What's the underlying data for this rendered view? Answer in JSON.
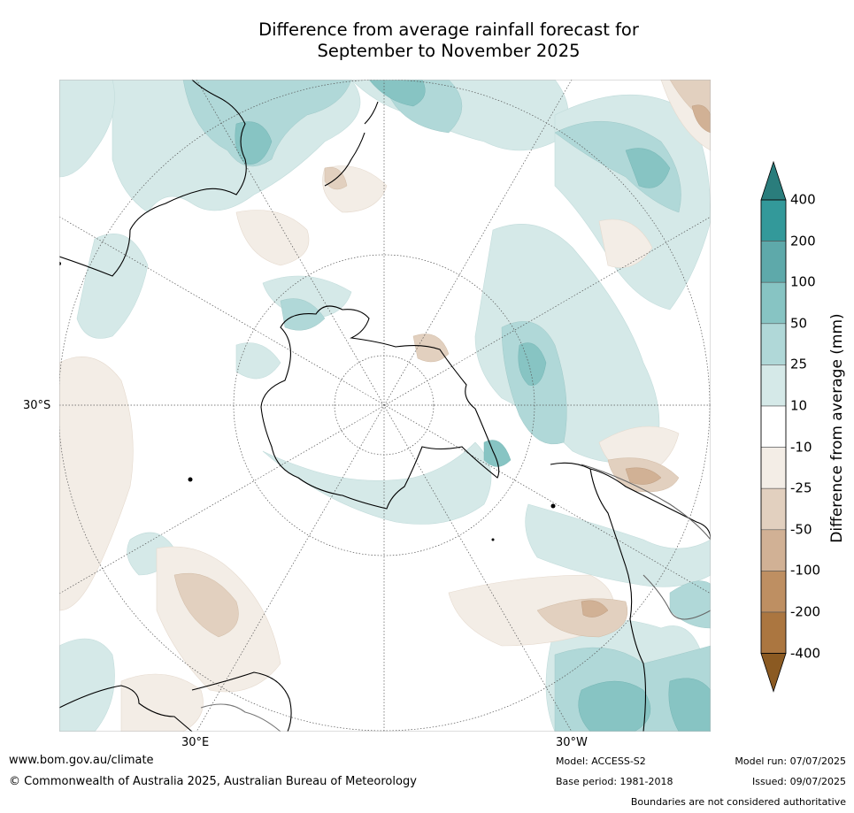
{
  "title_line1": "Difference from average rainfall forecast for",
  "title_line2": "September to November 2025",
  "graticule_labels": {
    "lat_30s": "30°S",
    "lon_30e": "30°E",
    "lon_30w": "30°W"
  },
  "colorbar": {
    "title": "Difference from average (mm)",
    "ticks": [
      "400",
      "200",
      "100",
      "50",
      "25",
      "10",
      "-10",
      "-25",
      "-50",
      "-100",
      "-200",
      "-400"
    ],
    "bands": [
      {
        "range": ">400",
        "color": "#2a7d7c"
      },
      {
        "range": "200 to 400",
        "color": "#33999a"
      },
      {
        "range": "100 to 200",
        "color": "#5ea9aa"
      },
      {
        "range": "50 to 100",
        "color": "#87c4c3"
      },
      {
        "range": "25 to 50",
        "color": "#b0d8d8"
      },
      {
        "range": "10 to 25",
        "color": "#d5e9e8"
      },
      {
        "range": "-10 to 10",
        "color": "#ffffff"
      },
      {
        "range": "-25 to -10",
        "color": "#f3ede6"
      },
      {
        "range": "-50 to -25",
        "color": "#e2d0bf"
      },
      {
        "range": "-100 to -50",
        "color": "#d1b195"
      },
      {
        "range": "-200 to -100",
        "color": "#be8f62"
      },
      {
        "range": "-400 to -200",
        "color": "#ab7640"
      },
      {
        "range": "<-400",
        "color": "#8b5a22"
      }
    ]
  },
  "footer": {
    "website": "www.bom.gov.au/climate",
    "copyright": "© Commonwealth of Australia 2025, Australian Bureau of Meteorology",
    "model": "Model: ACCESS-S2",
    "base_period": "Base period: 1981-2018",
    "model_run": "Model run: 07/07/2025",
    "issued": "Issued: 09/07/2025",
    "disclaimer": "Boundaries are not considered authoritative"
  }
}
